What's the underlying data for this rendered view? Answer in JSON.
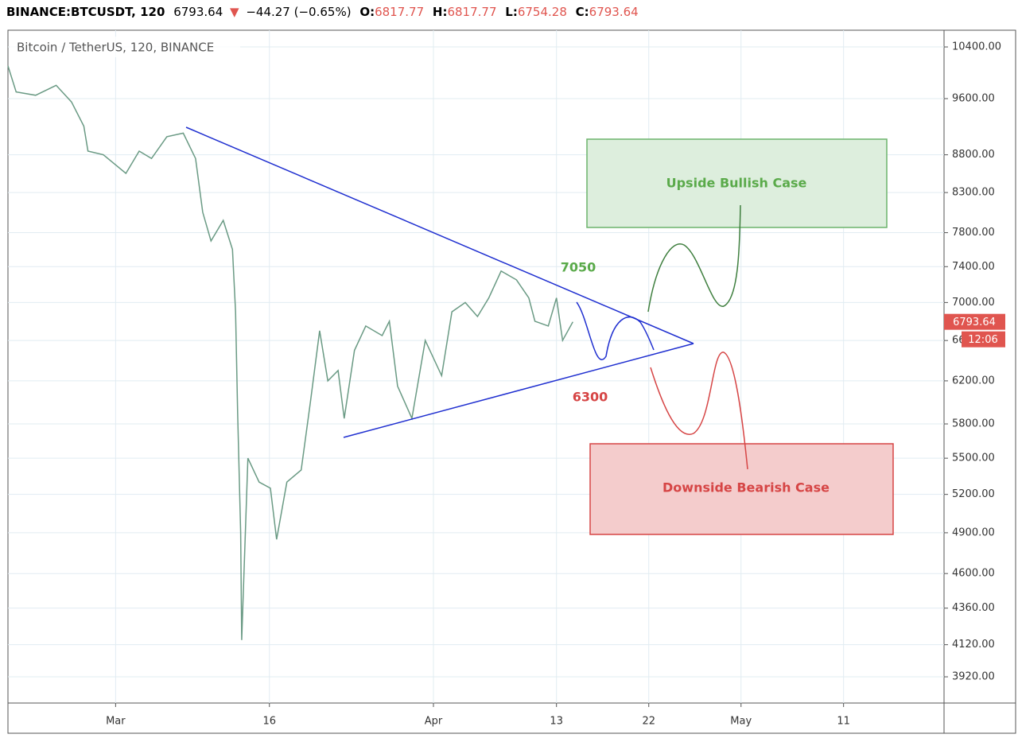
{
  "chart_data": {
    "type": "line",
    "title": "Bitcoin / TetherUS, 120, BINANCE",
    "header": {
      "symbol": "BINANCE:BTCUSDT, 120",
      "price": "6793.64",
      "arrow": "▼",
      "change": "−44.27 (−0.65%)",
      "open_label": "O:",
      "open": "6817.77",
      "high_label": "H:",
      "high": "6817.77",
      "low_label": "L:",
      "low": "6754.28",
      "close_label": "C:",
      "close": "6793.64"
    },
    "countdown": "12:06",
    "log_scale": true,
    "grid": true,
    "x": [
      -10.5,
      -9.7,
      -7.8,
      -5.8,
      -4.3,
      -3.1,
      -2.7,
      -1.2,
      1.0,
      2.3,
      3.5,
      5.0,
      6.6,
      7.8,
      8.5,
      9.3,
      10.5,
      11.4,
      11.7,
      11.9,
      12.2,
      12.3,
      12.9,
      14.0,
      15.1,
      15.7,
      16.7,
      18.1,
      19.0,
      19.9,
      20.7,
      21.7,
      22.3,
      23.3,
      24.4,
      26.0,
      26.7,
      27.5,
      28.9,
      30.2,
      31.8,
      32.8,
      34.1,
      35.3,
      36.4,
      37.6,
      39.1,
      40.3,
      40.9,
      42.2,
      43.0,
      43.6,
      44.6
    ],
    "series": [
      {
        "name": "BTCUSDT",
        "color": "#6a9a84",
        "values": [
          10100,
          9700,
          9650,
          9800,
          9550,
          9200,
          8850,
          8800,
          8550,
          8850,
          8750,
          9050,
          9100,
          8750,
          8050,
          7700,
          7950,
          7600,
          6900,
          5900,
          4900,
          4150,
          5500,
          5300,
          5250,
          4850,
          5300,
          5400,
          6000,
          6700,
          6200,
          6300,
          5850,
          6500,
          6750,
          6650,
          6800,
          6150,
          5850,
          6600,
          6250,
          6900,
          7000,
          6850,
          7050,
          7350,
          7250,
          7050,
          6800,
          6750,
          7050,
          6600,
          6793.64
        ]
      }
    ],
    "xlim": [
      -10.5,
      80.8
    ],
    "xticks": [
      {
        "value": 0,
        "label": "Mar"
      },
      {
        "value": 15,
        "label": "16"
      },
      {
        "value": 31,
        "label": "Apr"
      },
      {
        "value": 43,
        "label": "13"
      },
      {
        "value": 52,
        "label": "22"
      },
      {
        "value": 61,
        "label": "May"
      },
      {
        "value": 71,
        "label": "11"
      }
    ],
    "ylim": [
      3764,
      10673
    ],
    "yticks": [
      {
        "value": 3920,
        "label": "3920.00"
      },
      {
        "value": 4120,
        "label": "4120.00"
      },
      {
        "value": 4360,
        "label": "4360.00"
      },
      {
        "value": 4600,
        "label": "4600.00"
      },
      {
        "value": 4900,
        "label": "4900.00"
      },
      {
        "value": 5200,
        "label": "5200.00"
      },
      {
        "value": 5500,
        "label": "5500.00"
      },
      {
        "value": 5800,
        "label": "5800.00"
      },
      {
        "value": 6200,
        "label": "6200.00"
      },
      {
        "value": 6600,
        "label": "6600.00"
      },
      {
        "value": 7000,
        "label": "7000.00"
      },
      {
        "value": 7400,
        "label": "7400.00"
      },
      {
        "value": 7800,
        "label": "7800.00"
      },
      {
        "value": 8300,
        "label": "8300.00"
      },
      {
        "value": 8800,
        "label": "8800.00"
      },
      {
        "value": 9600,
        "label": "9600.00"
      },
      {
        "value": 10400,
        "label": "10400.00"
      }
    ],
    "annotations": {
      "bull_level": "7050",
      "bear_level": "6300",
      "bull_case": "Upside Bullish Case",
      "bear_case": "Downside Bearish Case"
    }
  }
}
